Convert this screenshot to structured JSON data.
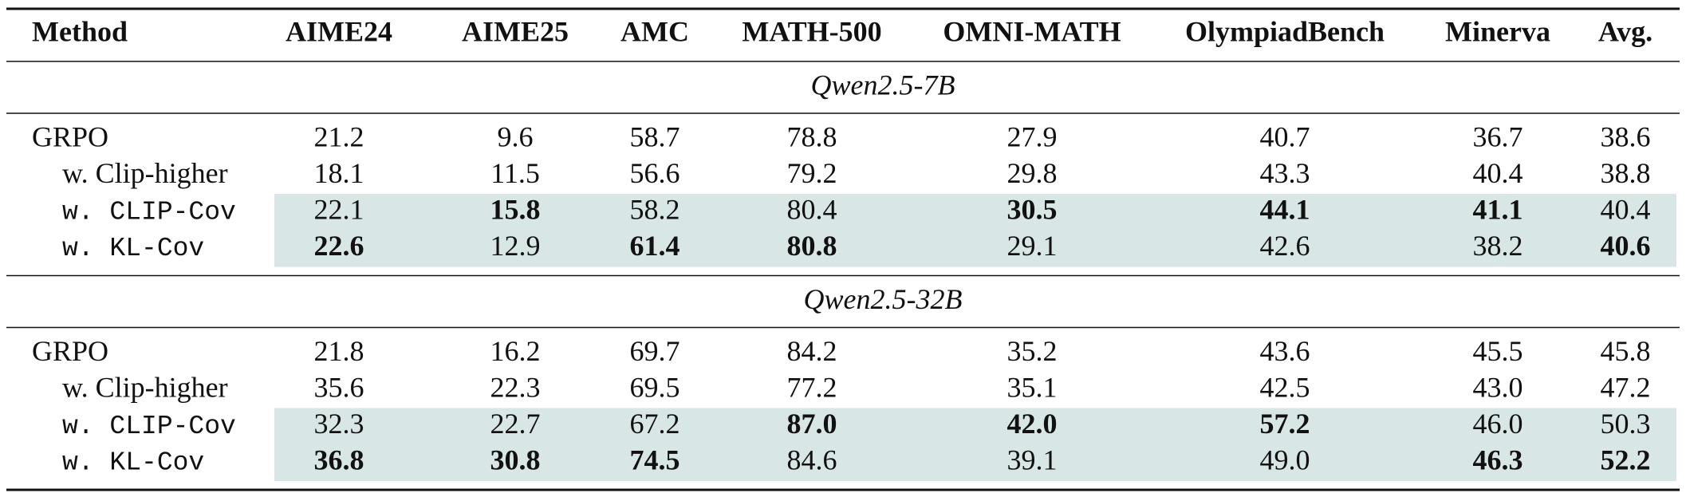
{
  "table": {
    "columns": [
      "Method",
      "AIME24",
      "AIME25",
      "AMC",
      "MATH-500",
      "OMNI-MATH",
      "OlympiadBench",
      "Minerva",
      "Avg."
    ],
    "sections": [
      {
        "title": "Qwen2.5-7B",
        "rows": [
          {
            "method": "GRPO",
            "indent": false,
            "mono": false,
            "highlight": false,
            "values": [
              "21.2",
              "9.6",
              "58.7",
              "78.8",
              "27.9",
              "40.7",
              "36.7",
              "38.6"
            ],
            "bold": [
              false,
              false,
              false,
              false,
              false,
              false,
              false,
              false
            ]
          },
          {
            "method": "w. Clip-higher",
            "indent": true,
            "mono": false,
            "highlight": false,
            "values": [
              "18.1",
              "11.5",
              "56.6",
              "79.2",
              "29.8",
              "43.3",
              "40.4",
              "38.8"
            ],
            "bold": [
              false,
              false,
              false,
              false,
              false,
              false,
              false,
              false
            ]
          },
          {
            "method": "w. CLIP-Cov",
            "indent": true,
            "mono": true,
            "highlight": true,
            "values": [
              "22.1",
              "15.8",
              "58.2",
              "80.4",
              "30.5",
              "44.1",
              "41.1",
              "40.4"
            ],
            "bold": [
              false,
              true,
              false,
              false,
              true,
              true,
              true,
              false
            ]
          },
          {
            "method": "w. KL-Cov",
            "indent": true,
            "mono": true,
            "highlight": true,
            "values": [
              "22.6",
              "12.9",
              "61.4",
              "80.8",
              "29.1",
              "42.6",
              "38.2",
              "40.6"
            ],
            "bold": [
              true,
              false,
              true,
              true,
              false,
              false,
              false,
              true
            ]
          }
        ]
      },
      {
        "title": "Qwen2.5-32B",
        "rows": [
          {
            "method": "GRPO",
            "indent": false,
            "mono": false,
            "highlight": false,
            "values": [
              "21.8",
              "16.2",
              "69.7",
              "84.2",
              "35.2",
              "43.6",
              "45.5",
              "45.8"
            ],
            "bold": [
              false,
              false,
              false,
              false,
              false,
              false,
              false,
              false
            ]
          },
          {
            "method": "w. Clip-higher",
            "indent": true,
            "mono": false,
            "highlight": false,
            "values": [
              "35.6",
              "22.3",
              "69.5",
              "77.2",
              "35.1",
              "42.5",
              "43.0",
              "47.2"
            ],
            "bold": [
              false,
              false,
              false,
              false,
              false,
              false,
              false,
              false
            ]
          },
          {
            "method": "w. CLIP-Cov",
            "indent": true,
            "mono": true,
            "highlight": true,
            "values": [
              "32.3",
              "22.7",
              "67.2",
              "87.0",
              "42.0",
              "57.2",
              "46.0",
              "50.3"
            ],
            "bold": [
              false,
              false,
              false,
              true,
              true,
              true,
              false,
              false
            ]
          },
          {
            "method": "w. KL-Cov",
            "indent": true,
            "mono": true,
            "highlight": true,
            "values": [
              "36.8",
              "30.8",
              "74.5",
              "84.6",
              "39.1",
              "49.0",
              "46.3",
              "52.2"
            ],
            "bold": [
              true,
              true,
              true,
              false,
              false,
              false,
              true,
              true
            ]
          }
        ]
      }
    ]
  }
}
